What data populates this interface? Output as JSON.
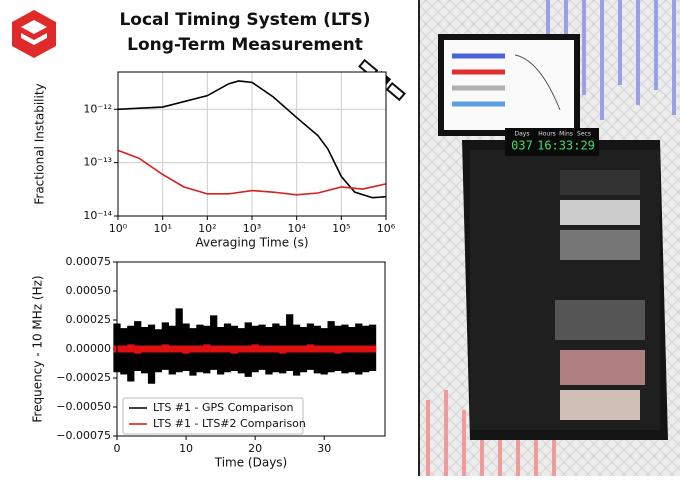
{
  "title_lines": [
    "Local Timing System (LTS)",
    "Long-Term Measurement"
  ],
  "photo": {
    "clock_labels": [
      "Days",
      "Hours",
      "Mins",
      "Secs"
    ],
    "clock_days": "037",
    "clock_time": "16:33:29"
  },
  "chart_data": [
    {
      "type": "line",
      "log_x": true,
      "log_y": true,
      "grid": true,
      "xlabel": "Averaging Time (s)",
      "ylabel": "Fractional Instability",
      "xlim": [
        1,
        1000000
      ],
      "ylim": [
        1e-14,
        5e-12
      ],
      "xticks": [
        {
          "value": 1,
          "label": "10⁰"
        },
        {
          "value": 10,
          "label": "10¹"
        },
        {
          "value": 100,
          "label": "10²"
        },
        {
          "value": 1000,
          "label": "10³"
        },
        {
          "value": 10000,
          "label": "10⁴"
        },
        {
          "value": 100000,
          "label": "10⁵"
        },
        {
          "value": 1000000,
          "label": "10⁶"
        }
      ],
      "yticks": [
        {
          "value": 1e-14,
          "label": "10⁻¹⁴"
        },
        {
          "value": 1e-13,
          "label": "10⁻¹³"
        },
        {
          "value": 1e-12,
          "label": "10⁻¹²"
        }
      ],
      "series": [
        {
          "color": "#000000",
          "x": [
            1,
            10,
            100,
            300,
            500,
            1000,
            3000,
            10000,
            30000,
            50000,
            100000,
            200000,
            500000,
            1000000
          ],
          "values": [
            1e-12,
            1.1e-12,
            1.8e-12,
            3e-12,
            3.4e-12,
            3.2e-12,
            1.7e-12,
            7e-13,
            3.2e-13,
            1.8e-13,
            5.5e-14,
            2.8e-14,
            2.2e-14,
            2.3e-14
          ]
        },
        {
          "color": "#d62020",
          "x": [
            1,
            3,
            10,
            30,
            100,
            300,
            1000,
            3000,
            10000,
            30000,
            100000,
            300000,
            1000000
          ],
          "values": [
            1.7e-13,
            1.2e-13,
            6e-14,
            3.5e-14,
            2.6e-14,
            2.6e-14,
            3e-14,
            2.8e-14,
            2.5e-14,
            2.7e-14,
            3.5e-14,
            3.2e-14,
            4e-14
          ]
        }
      ]
    },
    {
      "type": "band",
      "xlabel": "Time (Days)",
      "ylabel": "Frequency - 10 MHz (Hz)",
      "xlim": [
        0,
        38.8
      ],
      "ylim": [
        -0.00075,
        0.00075
      ],
      "legend": "lower left",
      "xticks": [
        0,
        10,
        20,
        30
      ],
      "yticks": [
        {
          "value": -0.00075,
          "label": "−0.00075"
        },
        {
          "value": -0.0005,
          "label": "−0.00050"
        },
        {
          "value": -0.00025,
          "label": "−0.00025"
        },
        {
          "value": 0,
          "label": "0.00000"
        },
        0.00025,
        {
          "value": 0.0005,
          "label": "0.00050"
        },
        0.00075
      ],
      "x": [
        0,
        1,
        2,
        3,
        4,
        5,
        6,
        7,
        8,
        9,
        10,
        11,
        12,
        13,
        14,
        15,
        16,
        17,
        18,
        19,
        20,
        21,
        22,
        23,
        24,
        25,
        26,
        27,
        28,
        29,
        30,
        31,
        32,
        33,
        34,
        35,
        36,
        37
      ],
      "series": [
        {
          "name": "LTS #1 - GPS Comparison",
          "color": "#000000",
          "high": [
            0.00022,
            0.00018,
            0.0002,
            0.00024,
            0.00019,
            0.00021,
            0.00017,
            0.00023,
            0.0002,
            0.00035,
            0.00022,
            0.00018,
            0.00021,
            0.0002,
            0.00029,
            0.00019,
            0.00022,
            0.0002,
            0.00018,
            0.00023,
            0.0002,
            0.00021,
            0.00019,
            0.00022,
            0.0002,
            0.0003,
            0.00021,
            0.00019,
            0.00022,
            0.0002,
            0.00018,
            0.00024,
            0.0002,
            0.00021,
            0.00019,
            0.00022,
            0.0002,
            0.00021
          ],
          "low": [
            -0.0002,
            -0.00022,
            -0.00028,
            -0.00019,
            -0.00021,
            -0.0003,
            -0.0002,
            -0.00018,
            -0.00022,
            -0.0002,
            -0.00019,
            -0.00023,
            -0.0002,
            -0.00021,
            -0.00018,
            -0.00022,
            -0.0002,
            -0.00019,
            -0.00021,
            -0.00024,
            -0.0002,
            -0.00018,
            -0.00022,
            -0.0002,
            -0.00021,
            -0.00019,
            -0.00023,
            -0.0002,
            -0.00018,
            -0.00021,
            -0.00022,
            -0.0002,
            -0.00019,
            -0.00021,
            -0.0002,
            -0.00022,
            -0.0002,
            -0.00019
          ]
        },
        {
          "name": "LTS #1 - LTS#2 Comparison",
          "color": "#e01010",
          "high": [
            3e-05,
            3e-05,
            4e-05,
            3e-05,
            3e-05,
            3e-05,
            3e-05,
            4e-05,
            3e-05,
            3e-05,
            3e-05,
            3e-05,
            3e-05,
            4e-05,
            3e-05,
            3e-05,
            3e-05,
            3e-05,
            3e-05,
            3e-05,
            4e-05,
            3e-05,
            3e-05,
            3e-05,
            3e-05,
            3e-05,
            3e-05,
            3e-05,
            4e-05,
            3e-05,
            3e-05,
            3e-05,
            3e-05,
            3e-05,
            3e-05,
            3e-05,
            3e-05,
            3e-05
          ],
          "low": [
            -3e-05,
            -3e-05,
            -3e-05,
            -4e-05,
            -3e-05,
            -3e-05,
            -3e-05,
            -3e-05,
            -3e-05,
            -3e-05,
            -4e-05,
            -3e-05,
            -3e-05,
            -3e-05,
            -3e-05,
            -3e-05,
            -3e-05,
            -4e-05,
            -3e-05,
            -3e-05,
            -3e-05,
            -3e-05,
            -3e-05,
            -3e-05,
            -4e-05,
            -3e-05,
            -3e-05,
            -3e-05,
            -3e-05,
            -3e-05,
            -3e-05,
            -3e-05,
            -4e-05,
            -3e-05,
            -3e-05,
            -3e-05,
            -3e-05,
            -3e-05
          ]
        }
      ]
    }
  ]
}
